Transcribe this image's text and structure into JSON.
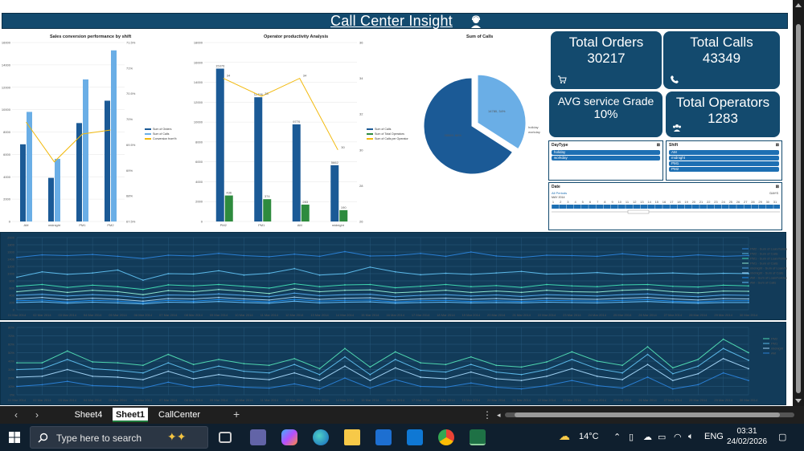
{
  "dashboard": {
    "title": "Call Center Insight",
    "kpis": [
      {
        "title": "Total Orders",
        "value": "30217",
        "icon": "cart-icon"
      },
      {
        "title": "Total Calls",
        "value": "43349",
        "icon": "phone-icon"
      },
      {
        "title": "AVG service Grade",
        "value": "10%",
        "icon": ""
      },
      {
        "title": "Total Operators",
        "value": "1283",
        "icon": "users-icon"
      }
    ],
    "slicers": {
      "daytype": {
        "title": "DayType",
        "items": [
          "holiday",
          "workday"
        ]
      },
      "shift": {
        "title": "Shift",
        "items": [
          "AM",
          "midnight",
          "PM1",
          "PM2"
        ]
      },
      "date": {
        "title": "Date",
        "range_label": "All Periods",
        "period": "DAYS",
        "year": "MAY 2014"
      }
    }
  },
  "chart_data": [
    {
      "type": "bar",
      "title": "Sales conversion performance by shift",
      "categories": [
        "AM",
        "midnight",
        "PM1",
        "PM2"
      ],
      "series": [
        {
          "name": "Sum of Orders",
          "values": [
            6900,
            3900,
            8800,
            10800
          ]
        },
        {
          "name": "Sum of Calls",
          "values": [
            9800,
            5600,
            12700,
            15300
          ]
        },
        {
          "name": "Conversion from%",
          "values": [
            0.7,
            0.69,
            0.697,
            0.698
          ]
        }
      ],
      "ylim": [
        0,
        16000
      ],
      "y2lim": [
        0.675,
        0.72
      ],
      "yticks": [
        "0",
        "2000",
        "4000",
        "6000",
        "8000",
        "10000",
        "12000",
        "14000",
        "16000"
      ],
      "y2ticks": [
        "67.5%",
        "68%",
        "69%",
        "69.5%",
        "70%",
        "70.5%",
        "71%",
        "71.5%"
      ]
    },
    {
      "type": "bar",
      "title": "Operator productivity Analysis",
      "categories": [
        "PM2",
        "PM1",
        "AM",
        "midnight"
      ],
      "series": [
        {
          "name": "Sum of Calls",
          "values": [
            15376,
            12496,
            9770,
            5662
          ]
        },
        {
          "name": "Sum of Total Operators",
          "values": [
            436,
            374,
            283,
            190
          ]
        },
        {
          "name": "Sum of Calls per Operator",
          "values": [
            34,
            33,
            34,
            30
          ]
        }
      ],
      "labels": [
        "15376",
        "12496",
        "9770",
        "5662"
      ],
      "op_labels": [
        "436",
        "374",
        "283",
        "190"
      ],
      "cpo_labels": [
        "34",
        "33",
        "34",
        "30"
      ],
      "ylim": [
        0,
        18000
      ],
      "yticks": [
        "0",
        "2000",
        "4000",
        "6000",
        "8000",
        "10000",
        "12000",
        "14000",
        "16000",
        "18000"
      ],
      "y2ticks": [
        "26",
        "28",
        "30",
        "32",
        "34",
        "36"
      ]
    },
    {
      "type": "pie",
      "title": "Sum of Calls",
      "slices": [
        {
          "name": "holiday",
          "value": 14780,
          "label": "14780, 34%"
        },
        {
          "name": "workday",
          "value": 28569,
          "label": "28569, 66%"
        }
      ]
    },
    {
      "type": "line",
      "title": "",
      "x": [
        "01 Mar 2014",
        "02 Mar 2014",
        "03 Mar 2014",
        "04 Mar 2014",
        "05 Mar 2014",
        "06 Mar 2014",
        "07 Mar 2014",
        "08 Mar 2014",
        "09 Mar 2014",
        "10 Mar 2014",
        "11 Mar 2014",
        "12 Mar 2014",
        "13 Mar 2014",
        "14 Mar 2014",
        "15 Mar 2014",
        "16 Mar 2014",
        "17 Mar 2014",
        "18 Mar 2014",
        "19 Mar 2014",
        "20 Mar 2014",
        "21 Mar 2014",
        "22 Mar 2014",
        "23 Mar 2014",
        "24 Mar 2014",
        "25 Mar 2014",
        "26 Mar 2014",
        "27 Mar 2014",
        "28 Mar 2014",
        "29 Mar 2014",
        "30 Mar 2014"
      ],
      "ylim": [
        0,
        2000
      ],
      "yticks": [
        "0",
        "200",
        "400",
        "600",
        "800",
        "1000",
        "1200",
        "1400",
        "1600",
        "1800",
        "2000"
      ],
      "series": [
        {
          "name": "PM2 - Sum of Loan/holiday",
          "values": [
            1450,
            1520,
            1500,
            1530,
            1480,
            1420,
            1510,
            1490,
            1560,
            1500,
            1470,
            1540,
            1480,
            1610,
            1490,
            1500,
            1560,
            1480,
            1600,
            1490,
            1450,
            1510,
            1500,
            1480,
            1550,
            1490,
            1470,
            1520,
            1480,
            1500
          ]
        },
        {
          "name": "PM2 - Sum of Calls",
          "values": [
            900,
            1050,
            980,
            1020,
            1100,
            820,
            1000,
            990,
            1080,
            960,
            1010,
            1140,
            960,
            1000,
            1180,
            1050,
            970,
            1010,
            980,
            1020,
            1060,
            990,
            1000,
            1030,
            980,
            1000,
            1020,
            990,
            1010,
            1000
          ]
        },
        {
          "name": "PM1 - Sum of Loan/holiday",
          "values": [
            650,
            700,
            620,
            680,
            640,
            560,
            690,
            660,
            700,
            650,
            600,
            720,
            640,
            690,
            700,
            610,
            650,
            700,
            640,
            670,
            620,
            700,
            660,
            640,
            690,
            700,
            650,
            630,
            680,
            660
          ]
        },
        {
          "name": "PM1 - Sum of Calls",
          "values": [
            500,
            560,
            480,
            540,
            500,
            420,
            530,
            500,
            560,
            510,
            450,
            580,
            500,
            540,
            550,
            470,
            500,
            540,
            480,
            520,
            480,
            540,
            500,
            490,
            540,
            560,
            500,
            470,
            520,
            510
          ]
        },
        {
          "name": "midnight - Sum of Loan/holiday",
          "values": [
            400,
            430,
            380,
            420,
            390,
            330,
            410,
            400,
            440,
            400,
            360,
            460,
            390,
            420,
            430,
            360,
            400,
            420,
            380,
            410,
            370,
            420,
            400,
            380,
            420,
            440,
            390,
            360,
            410,
            400
          ]
        },
        {
          "name": "midnight - Sum of Calls",
          "values": [
            300,
            340,
            280,
            320,
            290,
            240,
            310,
            300,
            340,
            300,
            270,
            350,
            290,
            320,
            330,
            270,
            300,
            320,
            290,
            310,
            280,
            320,
            300,
            290,
            320,
            340,
            300,
            270,
            310,
            300
          ]
        },
        {
          "name": "AM - Sum of Loan/holiday",
          "values": [
            250,
            270,
            220,
            260,
            240,
            200,
            260,
            240,
            280,
            250,
            220,
            290,
            240,
            260,
            270,
            220,
            250,
            260,
            230,
            250,
            230,
            260,
            250,
            240,
            260,
            280,
            240,
            220,
            250,
            250
          ]
        },
        {
          "name": "AM - Sum of Calls",
          "values": [
            200,
            220,
            180,
            210,
            190,
            160,
            210,
            200,
            230,
            200,
            180,
            240,
            190,
            210,
            220,
            180,
            200,
            210,
            190,
            200,
            190,
            210,
            200,
            190,
            210,
            230,
            200,
            180,
            200,
            200
          ]
        }
      ]
    },
    {
      "type": "line",
      "title": "",
      "x": [
        "01 Mar 2014",
        "02 Mar 2014",
        "03 Mar 2014",
        "04 Mar 2014",
        "05 Mar 2014",
        "06 Mar 2014",
        "07 Mar 2014",
        "08 Mar 2014",
        "09 Mar 2014",
        "10 Mar 2014",
        "11 Mar 2014",
        "12 Mar 2014",
        "13 Mar 2014",
        "14 Mar 2014",
        "15 Mar 2014",
        "16 Mar 2014",
        "17 Mar 2014",
        "18 Mar 2014",
        "19 Mar 2014",
        "20 Mar 2014",
        "21 Mar 2014",
        "22 Mar 2014",
        "23 Mar 2014",
        "24 Mar 2014",
        "25 Mar 2014",
        "26 Mar 2014",
        "27 Mar 2014",
        "28 Mar 2014",
        "29 Mar 2014",
        "30 Mar 2014"
      ],
      "ylim": [
        0,
        0.8
      ],
      "yticks": [
        "0%",
        "10%",
        "20%",
        "30%",
        "40%",
        "50%",
        "60%",
        "70%",
        "80%"
      ],
      "series": [
        {
          "name": "PM2",
          "values": [
            0.38,
            0.38,
            0.52,
            0.39,
            0.38,
            0.35,
            0.48,
            0.36,
            0.42,
            0.37,
            0.35,
            0.43,
            0.31,
            0.55,
            0.33,
            0.51,
            0.38,
            0.36,
            0.45,
            0.35,
            0.33,
            0.39,
            0.51,
            0.4,
            0.35,
            0.57,
            0.32,
            0.42,
            0.66,
            0.5
          ]
        },
        {
          "name": "PM1",
          "values": [
            0.3,
            0.31,
            0.42,
            0.31,
            0.29,
            0.26,
            0.38,
            0.27,
            0.34,
            0.28,
            0.26,
            0.36,
            0.24,
            0.45,
            0.24,
            0.42,
            0.29,
            0.27,
            0.36,
            0.27,
            0.24,
            0.3,
            0.42,
            0.31,
            0.26,
            0.48,
            0.25,
            0.34,
            0.55,
            0.41
          ]
        },
        {
          "name": "midnight",
          "values": [
            0.21,
            0.22,
            0.3,
            0.22,
            0.21,
            0.18,
            0.28,
            0.19,
            0.24,
            0.2,
            0.18,
            0.26,
            0.17,
            0.34,
            0.17,
            0.32,
            0.21,
            0.19,
            0.27,
            0.19,
            0.17,
            0.22,
            0.31,
            0.22,
            0.18,
            0.36,
            0.17,
            0.25,
            0.43,
            0.31
          ]
        },
        {
          "name": "AM",
          "values": [
            0.1,
            0.12,
            0.16,
            0.11,
            0.1,
            0.08,
            0.15,
            0.09,
            0.12,
            0.09,
            0.08,
            0.13,
            0.07,
            0.2,
            0.08,
            0.18,
            0.1,
            0.09,
            0.14,
            0.09,
            0.07,
            0.11,
            0.17,
            0.11,
            0.08,
            0.21,
            0.07,
            0.12,
            0.26,
            0.17
          ]
        }
      ]
    }
  ],
  "sheet_tabs": [
    "Sheet4",
    "Sheet1",
    "CallCenter"
  ],
  "active_tab": "Sheet1",
  "taskbar": {
    "search_placeholder": "Type here to search",
    "weather": "14°C",
    "language": "ENG",
    "time": "03:31",
    "date": "24/02/2026"
  }
}
